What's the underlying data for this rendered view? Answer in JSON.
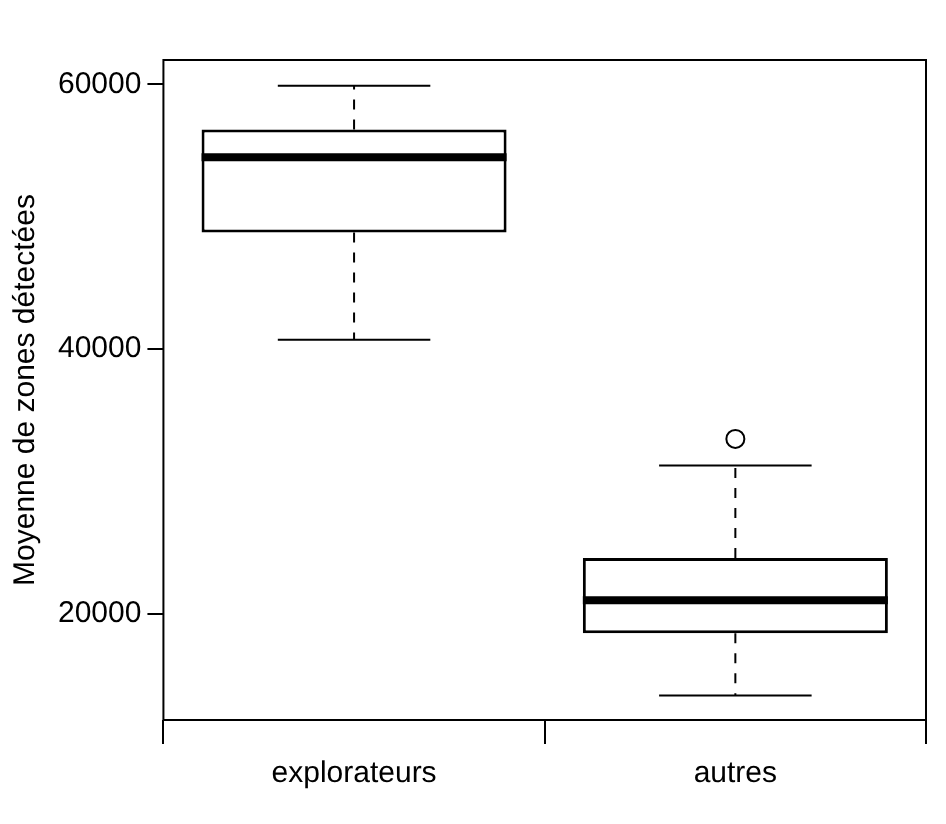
{
  "chart_data": {
    "type": "box",
    "ylabel": "Moyenne de zones détectées",
    "categories": [
      "explorateurs",
      "autres"
    ],
    "boxes": [
      {
        "low": 40700,
        "q1": 48800,
        "median": 54500,
        "q3": 56600,
        "high": 59900
      },
      {
        "low": 13800,
        "q1": 18500,
        "median": 21000,
        "q3": 24200,
        "high": 31200,
        "outliers": [
          33200
        ]
      }
    ],
    "ylim": [
      11950,
      61850
    ],
    "yticks": [
      20000,
      40000,
      60000
    ],
    "grid": false,
    "legend": false
  }
}
